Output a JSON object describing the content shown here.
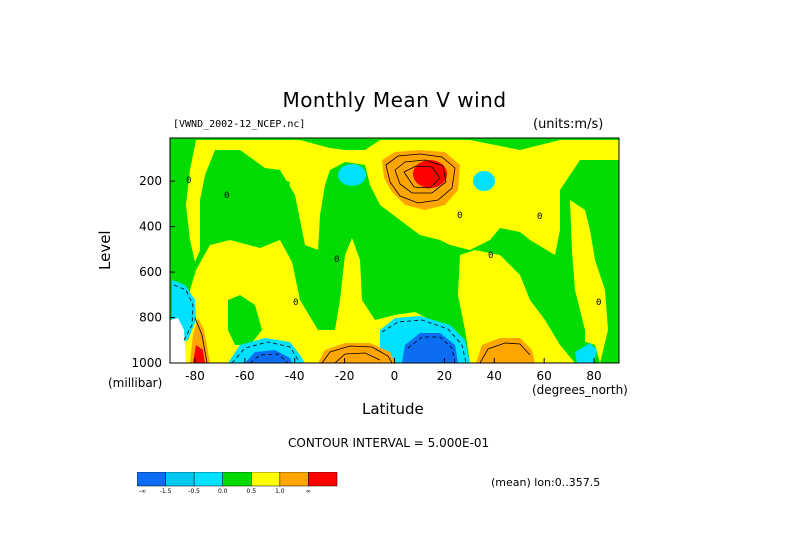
{
  "chart_data": {
    "type": "contour",
    "title": "Monthly Mean V wind",
    "dataset_label": "[VWND_2002-12_NCEP.nc]",
    "units_label": "(units:m/s)",
    "xlabel": "Latitude",
    "x_units": "(degrees_north)",
    "ylabel": "Level",
    "y_units": "(millibar)",
    "xlim": [
      -90,
      90
    ],
    "ylim": [
      1000,
      10
    ],
    "x_ticks": [
      -80,
      -60,
      -40,
      -20,
      0,
      20,
      40,
      60,
      80
    ],
    "y_ticks": [
      200,
      400,
      600,
      800,
      1000
    ],
    "contour_interval_text": "CONTOUR INTERVAL = 5.000E-01",
    "note": "(mean) lon:0..357.5",
    "contour_labels": [
      "0",
      "0",
      "0",
      "0",
      "0",
      "0",
      "0",
      "0"
    ],
    "colorbar": {
      "colors": [
        "#0b6ef2",
        "#00c8f0",
        "#00e0ff",
        "#00dc00",
        "#ffff00",
        "#ffa500",
        "#ff0000"
      ],
      "tick_labels": [
        "-∞",
        "-1.5",
        "-0.5",
        "0.0",
        "0.5",
        "1.0",
        "∞"
      ]
    }
  }
}
